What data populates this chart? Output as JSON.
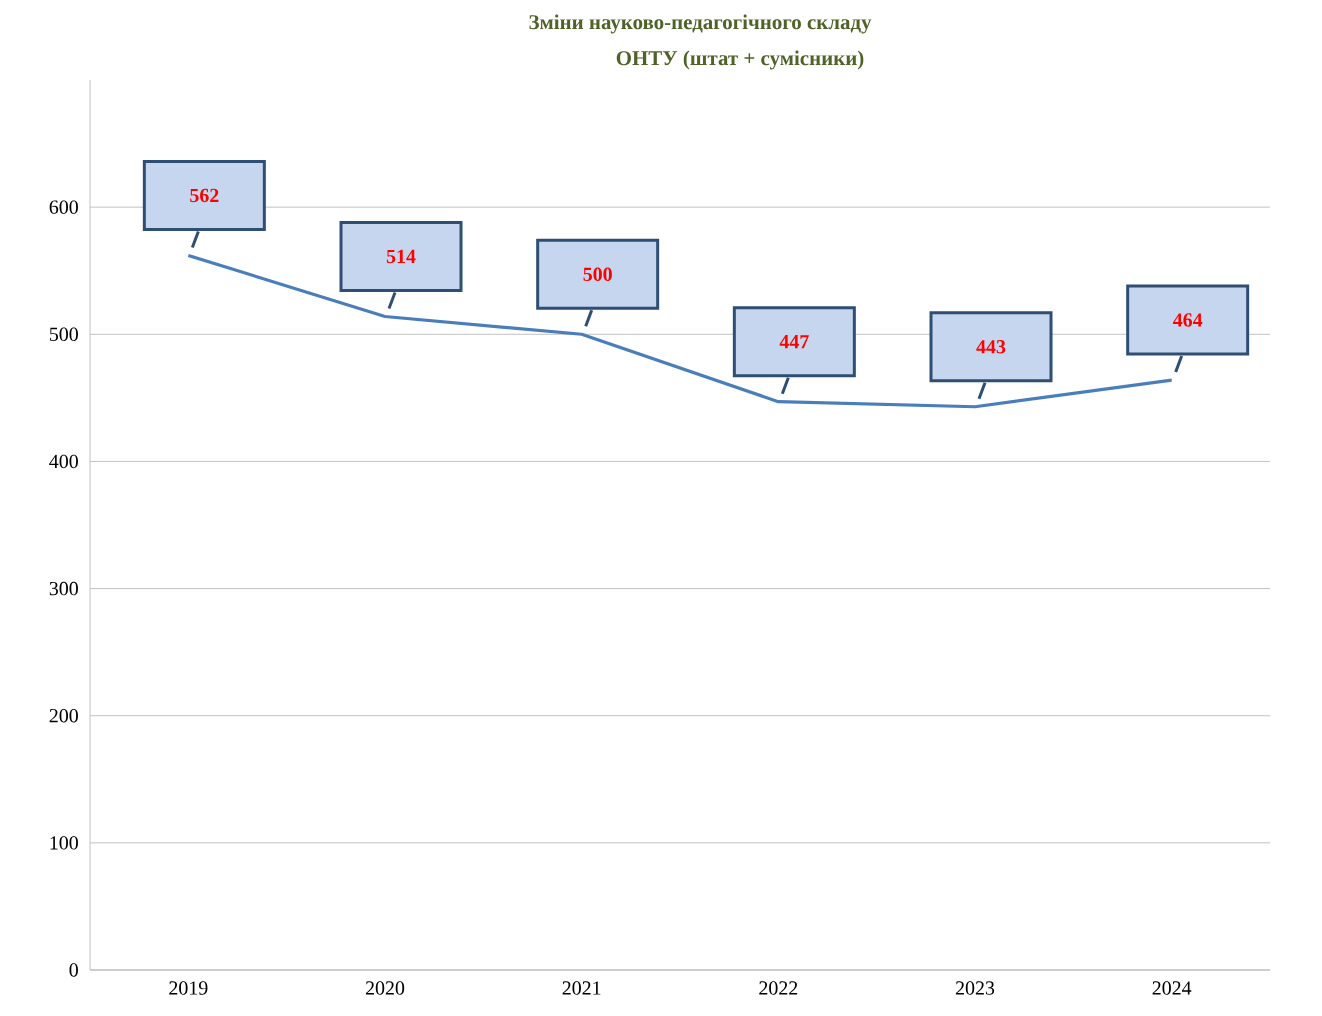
{
  "chart_data": {
    "type": "line",
    "title": "Зміни науково-педагогічного складу",
    "subtitle": "ОНТУ (штат + сумісники)",
    "categories": [
      "2019",
      "2020",
      "2021",
      "2022",
      "2023",
      "2024"
    ],
    "values": [
      562,
      514,
      500,
      447,
      443,
      464
    ],
    "color": "#4a7ebb",
    "ylim": [
      0,
      700
    ],
    "yticks": [
      0,
      100,
      200,
      300,
      400,
      500,
      600
    ],
    "grid": "y",
    "data_labels": true
  }
}
